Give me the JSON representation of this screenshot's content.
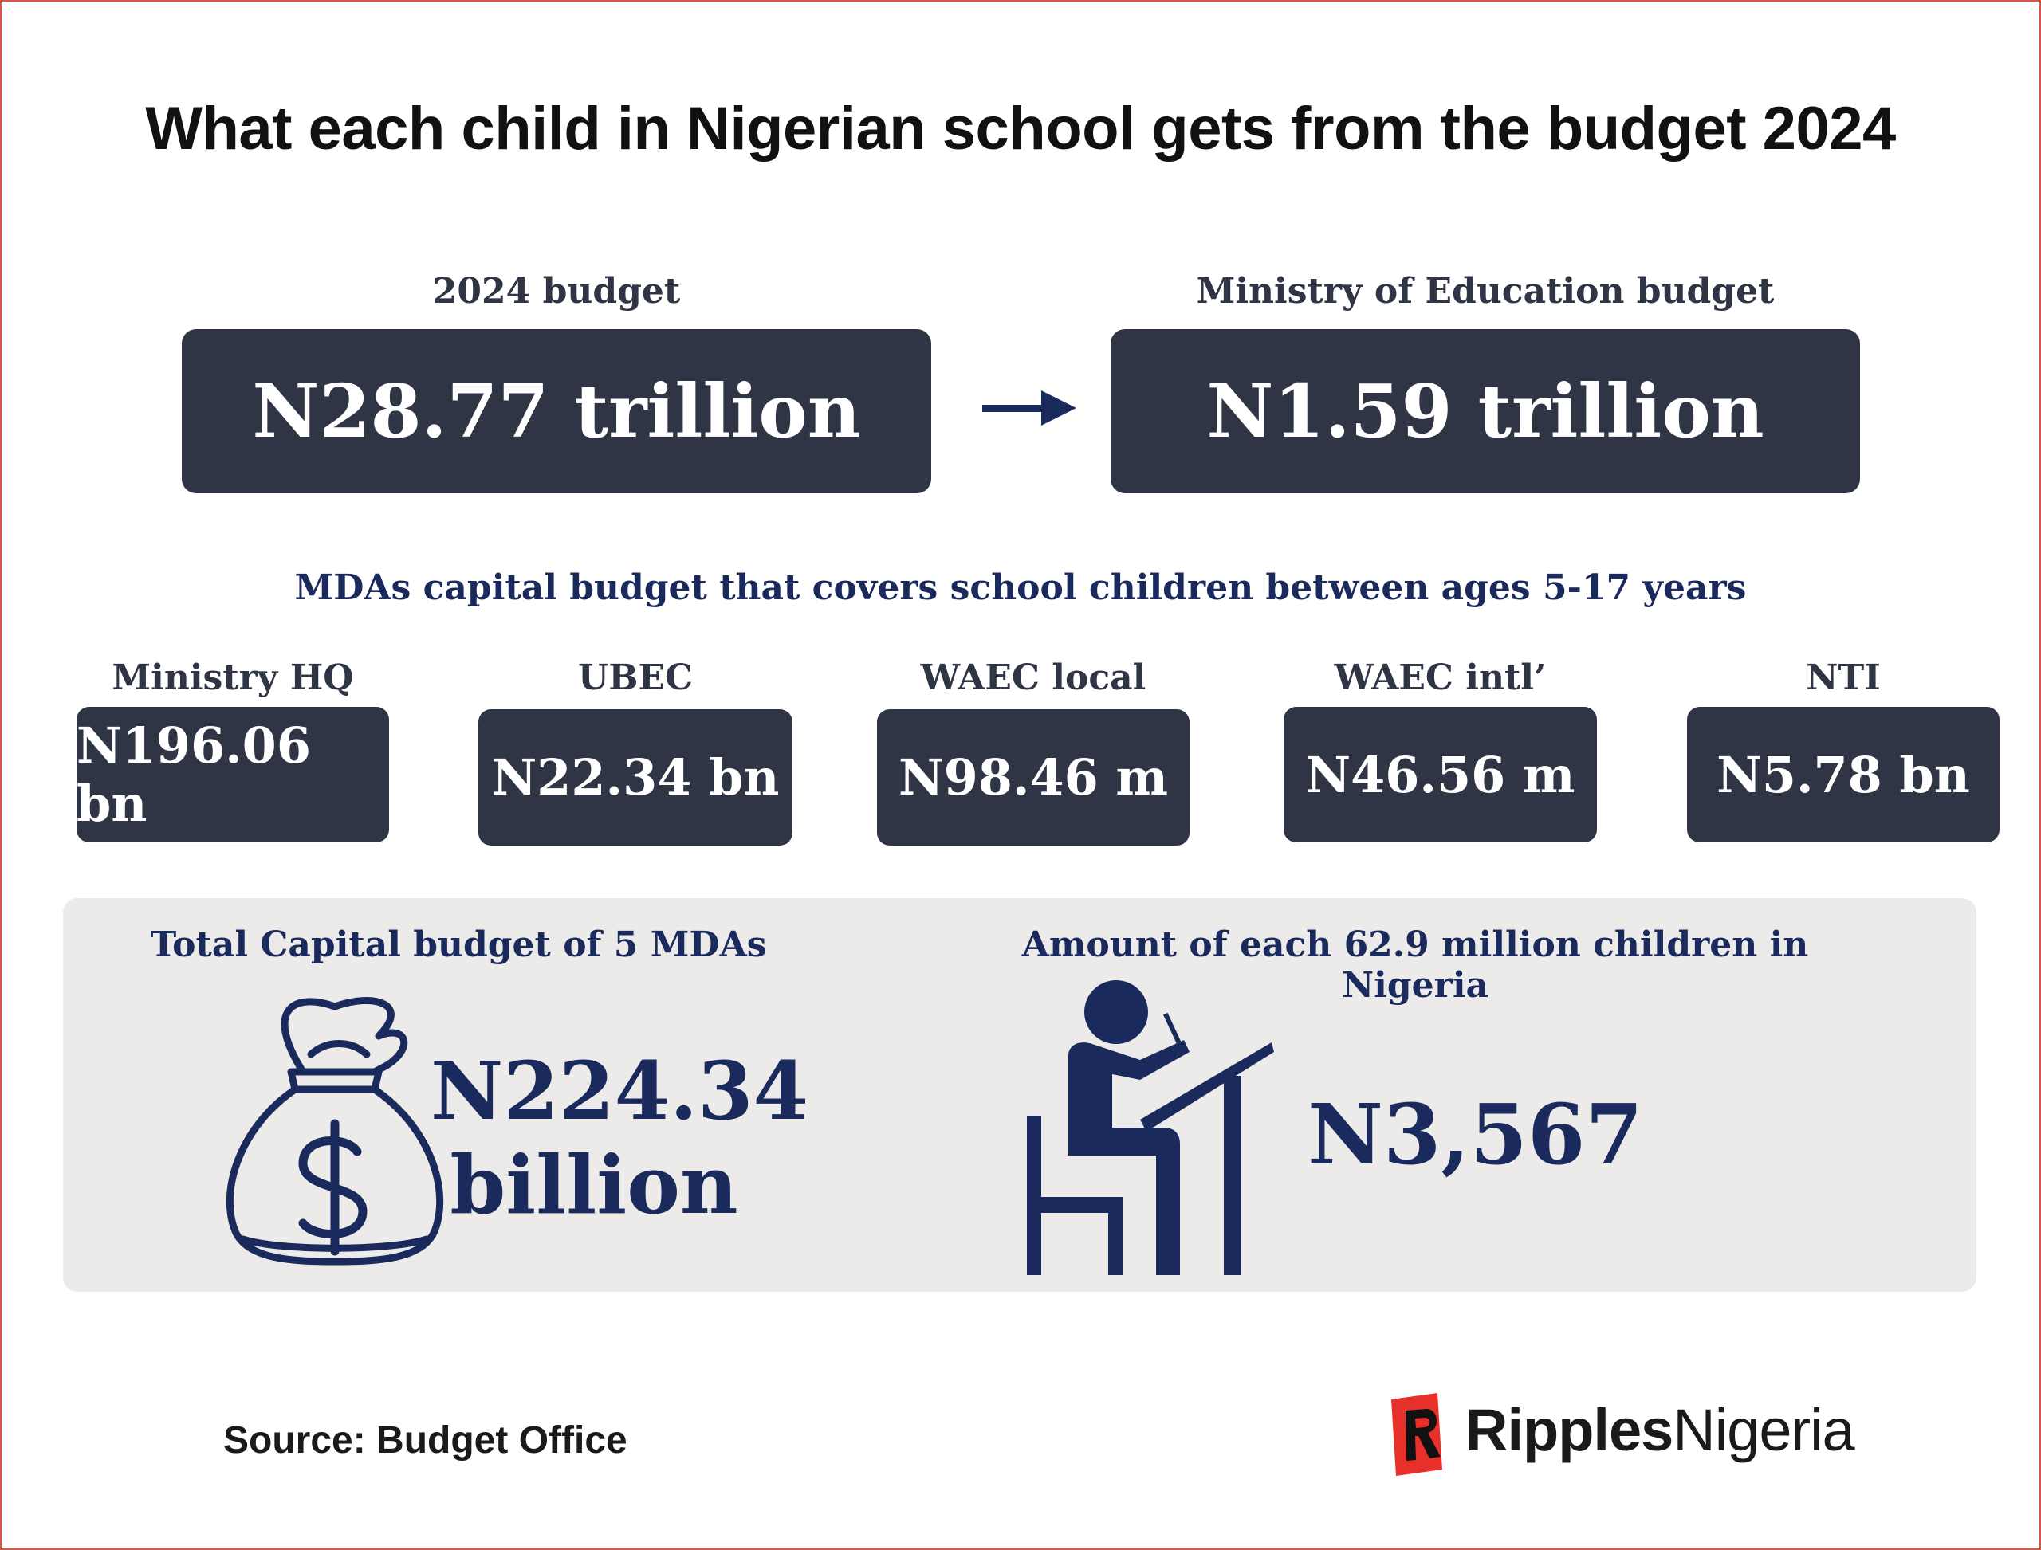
{
  "title": "What each child in Nigerian school gets from the budget 2024",
  "top": {
    "left": {
      "caption": "2024 budget",
      "value": "N28.77 trillion"
    },
    "right": {
      "caption": "Ministry of Education budget",
      "value": "N1.59 trillion"
    }
  },
  "subtitle": "MDAs capital budget that covers school children between ages 5-17 years",
  "mdas": [
    {
      "name": "Ministry HQ",
      "value": "N196.06 bn"
    },
    {
      "name": "UBEC",
      "value": "N22.34 bn"
    },
    {
      "name": "WAEC local",
      "value": "N98.46 m"
    },
    {
      "name": "WAEC intl’",
      "value": "N46.56 m"
    },
    {
      "name": "NTI",
      "value": "N5.78 bn"
    }
  ],
  "summary": {
    "total_label": "Total Capital budget of 5 MDAs",
    "total_value_line1": "N224.34",
    "total_value_line2": "billion",
    "per_child_label": "Amount of each 62.9 million  children in Nigeria",
    "per_child_value": "N3,567"
  },
  "source": "Source: Budget Office",
  "brand": {
    "part1": "Ripples",
    "part2": "Nigeria"
  },
  "icons": {
    "arrow": "arrow-right-icon",
    "money_bag": "money-bag-icon",
    "student": "student-at-desk-icon",
    "logo": "ripples-logo-icon"
  },
  "colors": {
    "box": "#2f3545",
    "navy": "#1b2a5c",
    "panel": "#edebea",
    "logo_red": "#e8302a"
  }
}
